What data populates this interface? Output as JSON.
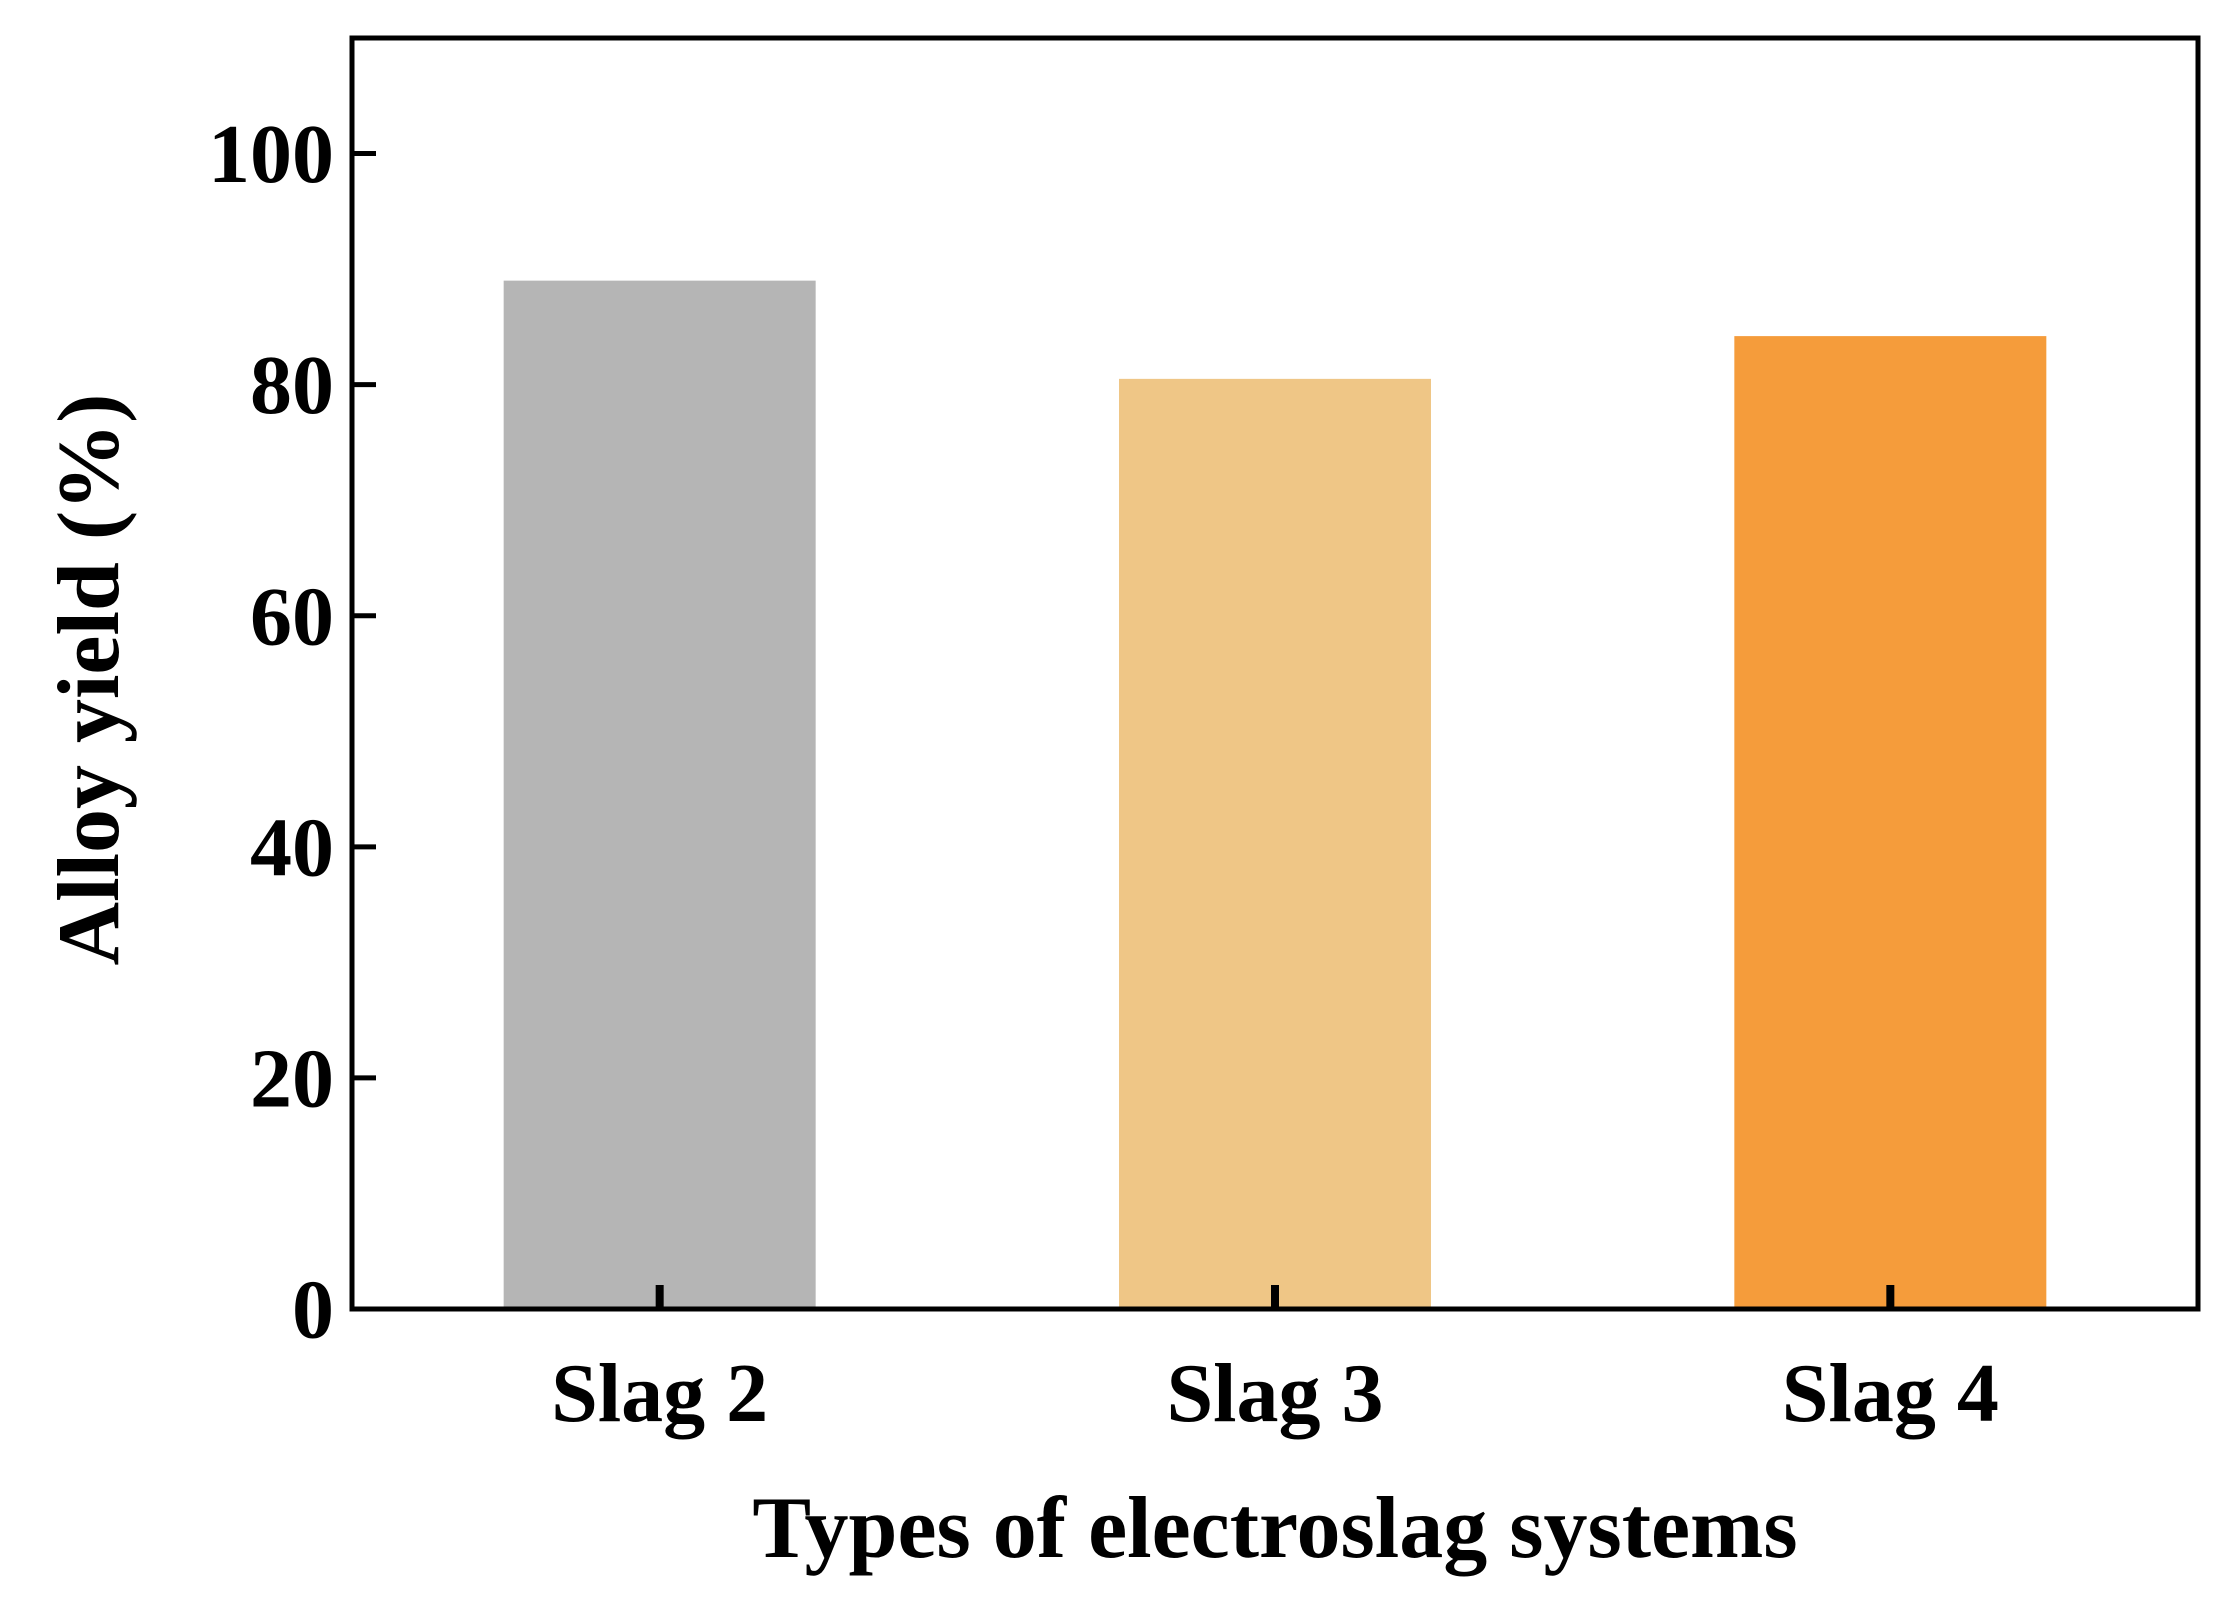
{
  "chart_data": {
    "type": "bar",
    "categories": [
      "Slag 2",
      "Slag 3",
      "Slag 4"
    ],
    "values": [
      89,
      80.5,
      84.2
    ],
    "title": "",
    "xlabel": "Types of electroslag systems",
    "ylabel": "Alloy yield (%)",
    "ylim": [
      0,
      110
    ],
    "yticks": [
      "0",
      "20",
      "40",
      "60",
      "80",
      "100"
    ],
    "grid": false,
    "bar_colors": [
      "#b5b5b5",
      "#efc686",
      "#f59c3b"
    ],
    "axis_color": "#000000"
  }
}
